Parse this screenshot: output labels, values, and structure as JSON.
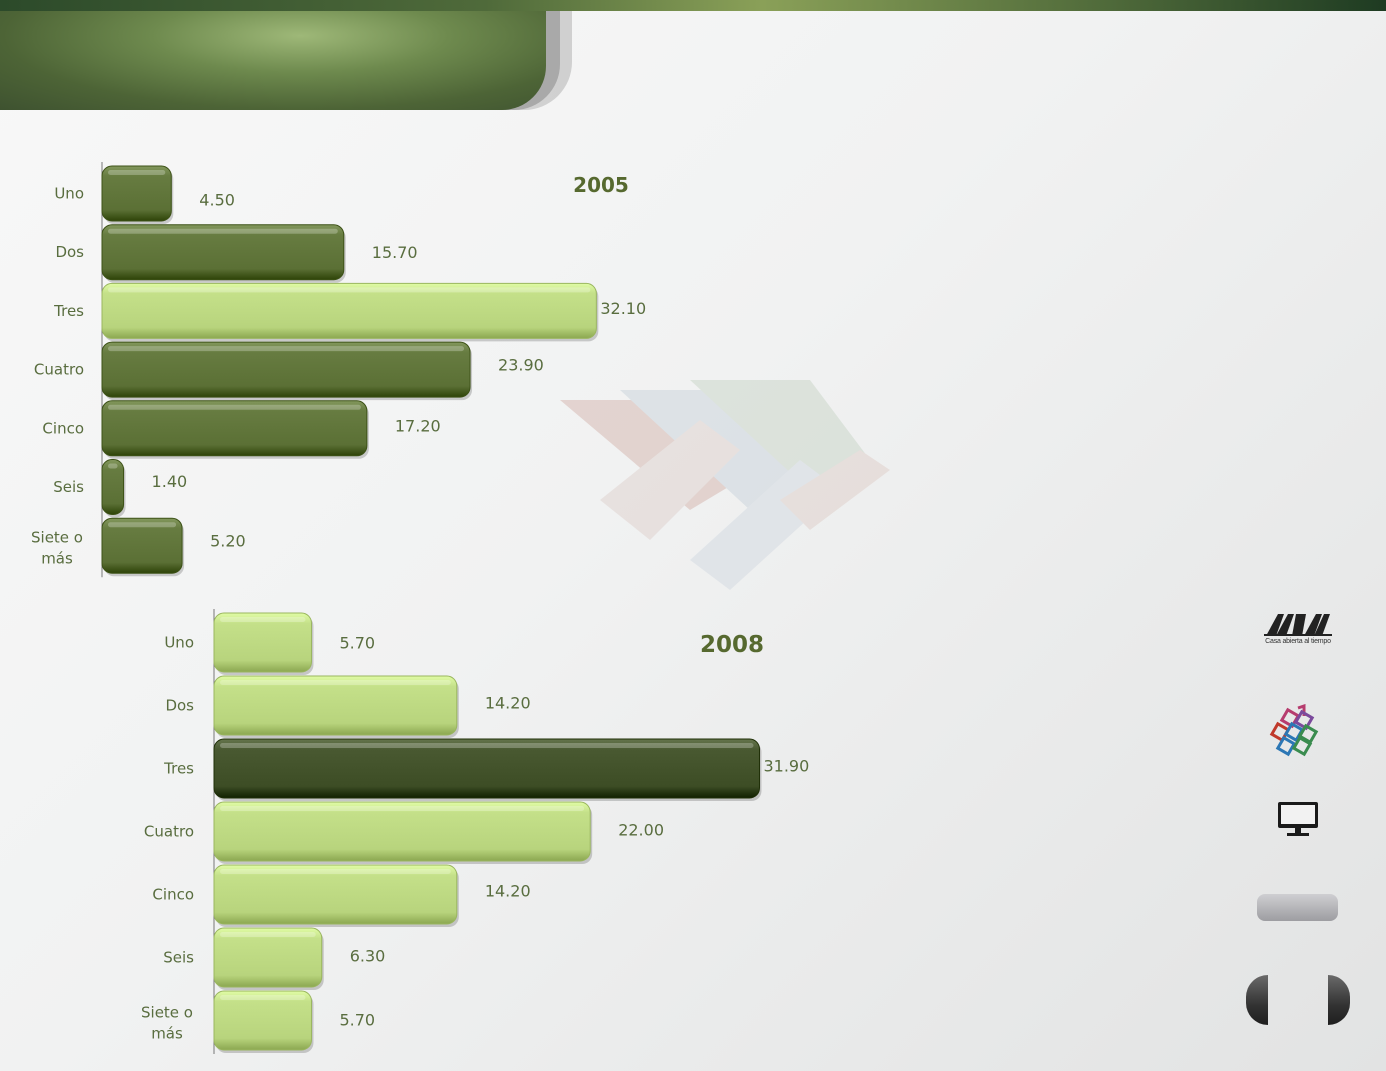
{
  "chart_data": [
    {
      "type": "bar",
      "orientation": "horizontal",
      "title": "2005",
      "categories": [
        "Uno",
        "Dos",
        "Tres",
        "Cuatro",
        "Cinco",
        "Seis",
        "Siete o más"
      ],
      "values": [
        4.5,
        15.7,
        32.1,
        23.9,
        17.2,
        1.4,
        5.2
      ],
      "value_labels": [
        "4.50",
        "15.70",
        "32.10",
        "23.90",
        "17.20",
        "1.40",
        "5.20"
      ],
      "highlight_index": 2,
      "colors": {
        "bar": "#5b7035",
        "highlight": "#b8d47d",
        "label": "#596d3f"
      },
      "grid": false,
      "legend": "none"
    },
    {
      "type": "bar",
      "orientation": "horizontal",
      "title": "2008",
      "categories": [
        "Uno",
        "Dos",
        "Tres",
        "Cuatro",
        "Cinco",
        "Seis",
        "Siete o más"
      ],
      "values": [
        5.7,
        14.2,
        31.9,
        22.0,
        14.2,
        6.3,
        5.7
      ],
      "value_labels": [
        "5.70",
        "14.20",
        "31.90",
        "22.00",
        "14.20",
        "6.30",
        "5.70"
      ],
      "highlight_index": 2,
      "colors": {
        "bar": "#b8d47d",
        "highlight": "#3d4d25",
        "label": "#596d3f"
      },
      "grid": false,
      "legend": "none"
    }
  ],
  "logo": {
    "caption": "Casa abierta al tiempo"
  },
  "sidebar_icons": [
    "uam-logo-icon",
    "colorful-logo-icon",
    "monitor-icon",
    "menu-button",
    "nav-prev",
    "nav-next"
  ]
}
